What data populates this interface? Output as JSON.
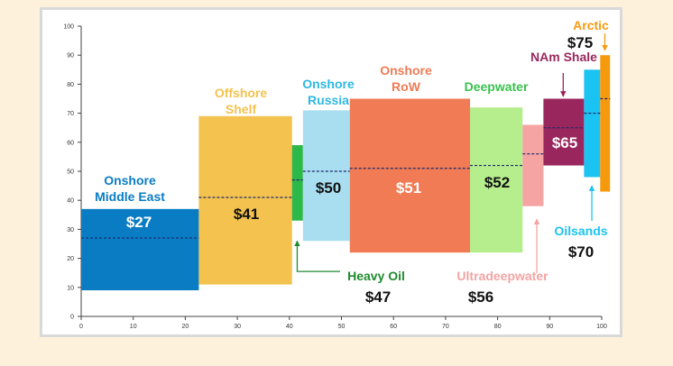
{
  "chart_data": {
    "type": "bar",
    "subtype": "floating-variable-width",
    "x_axis": {
      "range": [
        0,
        100
      ],
      "ticks": [
        0,
        10,
        20,
        30,
        40,
        50,
        60,
        70,
        80,
        90,
        100
      ]
    },
    "y_axis": {
      "range": [
        0,
        100
      ],
      "ticks": [
        0,
        10,
        20,
        30,
        40,
        50,
        60,
        70,
        80,
        90,
        100
      ]
    },
    "series": [
      {
        "name": "Onshore Middle East",
        "label_lines": [
          "Onshore",
          "Middle East"
        ],
        "x_start": 0,
        "x_end": 22.6,
        "low": 9,
        "high": 37,
        "value": 27,
        "value_label": "$27",
        "color": "#0a7cc4",
        "label_color": "#0a7cc4",
        "value_color": "#ffffff"
      },
      {
        "name": "Offshore Shelf",
        "label_lines": [
          "Offshore",
          "Shelf"
        ],
        "x_start": 22.6,
        "x_end": 40.5,
        "low": 11,
        "high": 69,
        "value": 41,
        "value_label": "$41",
        "color": "#f4c24e",
        "label_color": "#f4c24e",
        "value_color": "#111111"
      },
      {
        "name": "Heavy Oil",
        "label_lines": [
          "Heavy Oil"
        ],
        "x_start": 40.5,
        "x_end": 42.6,
        "low": 33,
        "high": 59,
        "value": 47,
        "value_label": "$47",
        "color": "#2db84a",
        "label_color": "#1f8a2e",
        "value_color": "#111111"
      },
      {
        "name": "Onshore Russia",
        "label_lines": [
          "Onshore",
          "Russia"
        ],
        "x_start": 42.6,
        "x_end": 51.6,
        "low": 26,
        "high": 71,
        "value": 50,
        "value_label": "$50",
        "color": "#a9def0",
        "label_color": "#2fb8e0",
        "value_color": "#111111"
      },
      {
        "name": "Onshore RoW",
        "label_lines": [
          "Onshore",
          "RoW"
        ],
        "x_start": 51.6,
        "x_end": 74.7,
        "low": 22,
        "high": 75,
        "value": 51,
        "value_label": "$51",
        "color": "#f07b55",
        "label_color": "#f07b55",
        "value_color": "#ffffff"
      },
      {
        "name": "Deepwater",
        "label_lines": [
          "Deepwater"
        ],
        "x_start": 74.7,
        "x_end": 84.8,
        "low": 22,
        "high": 72,
        "value": 52,
        "value_label": "$52",
        "color": "#b6ee8e",
        "label_color": "#39c24e",
        "value_color": "#111111"
      },
      {
        "name": "Ultradeepwater",
        "label_lines": [
          "Ultradeepwater"
        ],
        "x_start": 84.8,
        "x_end": 88.8,
        "low": 38,
        "high": 66,
        "value": 56,
        "value_label": "$56",
        "color": "#f5a3a3",
        "label_color": "#f5a3a3",
        "value_color": "#111111"
      },
      {
        "name": "NAm Shale",
        "label_lines": [
          "NAm Shale"
        ],
        "x_start": 88.8,
        "x_end": 96.6,
        "low": 52,
        "high": 75,
        "value": 65,
        "value_label": "$65",
        "color": "#99275d",
        "label_color": "#99275d",
        "value_color": "#ffffff"
      },
      {
        "name": "Oilsands",
        "label_lines": [
          "Oilsands"
        ],
        "x_start": 96.6,
        "x_end": 99.7,
        "low": 48,
        "high": 85,
        "value": 70,
        "value_label": "$70",
        "color": "#1bc3f2",
        "label_color": "#1bc3f2",
        "value_color": "#111111"
      },
      {
        "name": "Arctic",
        "label_lines": [
          "Arctic"
        ],
        "x_start": 99.7,
        "x_end": 101.6,
        "low": 43,
        "high": 90,
        "value": 75,
        "value_label": "$75",
        "color": "#f59a0e",
        "label_color": "#f59a0e",
        "value_color": "#111111"
      }
    ]
  }
}
